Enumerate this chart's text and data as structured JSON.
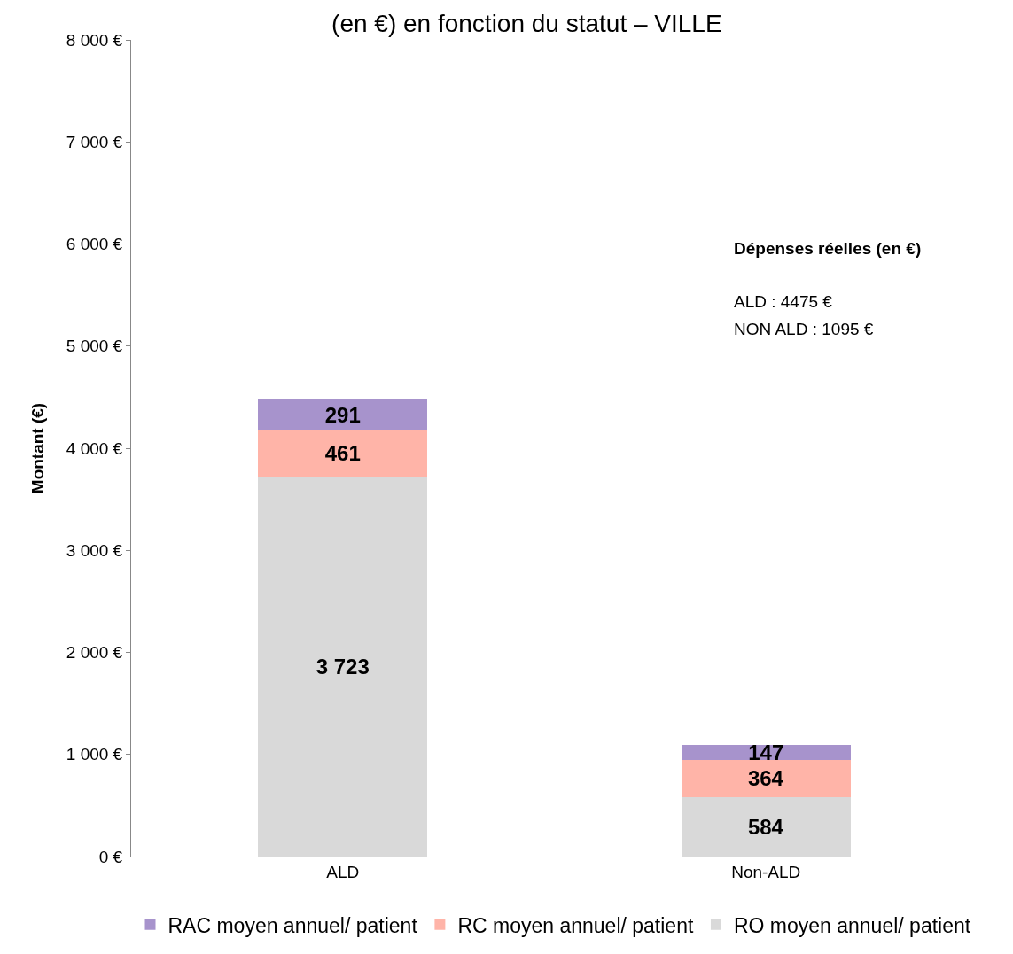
{
  "chart_data": {
    "type": "bar",
    "title": "(en €) en fonction du statut – VILLE",
    "ylabel": "Montant (€)",
    "stacked": true,
    "categories": [
      "ALD",
      "Non-ALD"
    ],
    "series": [
      {
        "name": "RO moyen annuel/ patient",
        "color": "#d9d9d9",
        "values": [
          3723,
          584
        ],
        "value_labels": [
          "3 723",
          "584"
        ]
      },
      {
        "name": "RC moyen annuel/ patient",
        "color": "#ffb4a8",
        "values": [
          461,
          364
        ],
        "value_labels": [
          "461",
          "364"
        ]
      },
      {
        "name": "RAC moyen annuel/ patient",
        "color": "#a793cc",
        "values": [
          291,
          147
        ],
        "value_labels": [
          "291",
          "147"
        ]
      }
    ],
    "ylim": [
      0,
      8000
    ],
    "yticks": [
      {
        "value": 0,
        "label": "0 €"
      },
      {
        "value": 1000,
        "label": "1 000 €"
      },
      {
        "value": 2000,
        "label": "2 000 €"
      },
      {
        "value": 3000,
        "label": "3 000 €"
      },
      {
        "value": 4000,
        "label": "4 000 €"
      },
      {
        "value": 5000,
        "label": "5 000 €"
      },
      {
        "value": 6000,
        "label": "6 000 €"
      },
      {
        "value": 7000,
        "label": "7 000 €"
      },
      {
        "value": 8000,
        "label": "8 000 €"
      }
    ],
    "grid": false,
    "legend": "bottom",
    "annotations": [
      "Dépenses réelles (en €)",
      "ALD : 4475 €",
      "NON ALD : 1095 €"
    ]
  }
}
